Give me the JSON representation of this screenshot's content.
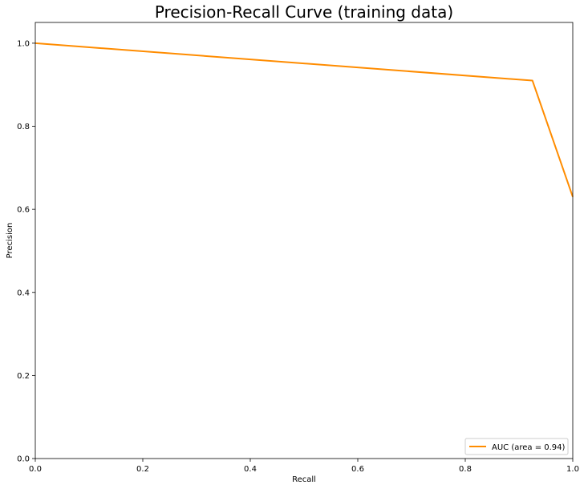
{
  "chart_data": {
    "type": "line",
    "title": "Precision-Recall Curve (training data)",
    "xlabel": "Recall",
    "ylabel": "Precision",
    "xlim": [
      0.0,
      1.0
    ],
    "ylim": [
      0.0,
      1.05
    ],
    "x_ticks": [
      "0.0",
      "0.2",
      "0.4",
      "0.6",
      "0.8",
      "1.0"
    ],
    "y_ticks": [
      "0.0",
      "0.2",
      "0.4",
      "0.6",
      "0.8",
      "1.0"
    ],
    "grid": false,
    "legend_position": "lower-right",
    "series": [
      {
        "name": "AUC (area = 0.94)",
        "color": "#ff8c00",
        "x": [
          0.0,
          0.925,
          1.0
        ],
        "y": [
          1.0,
          0.91,
          0.63
        ]
      }
    ]
  }
}
